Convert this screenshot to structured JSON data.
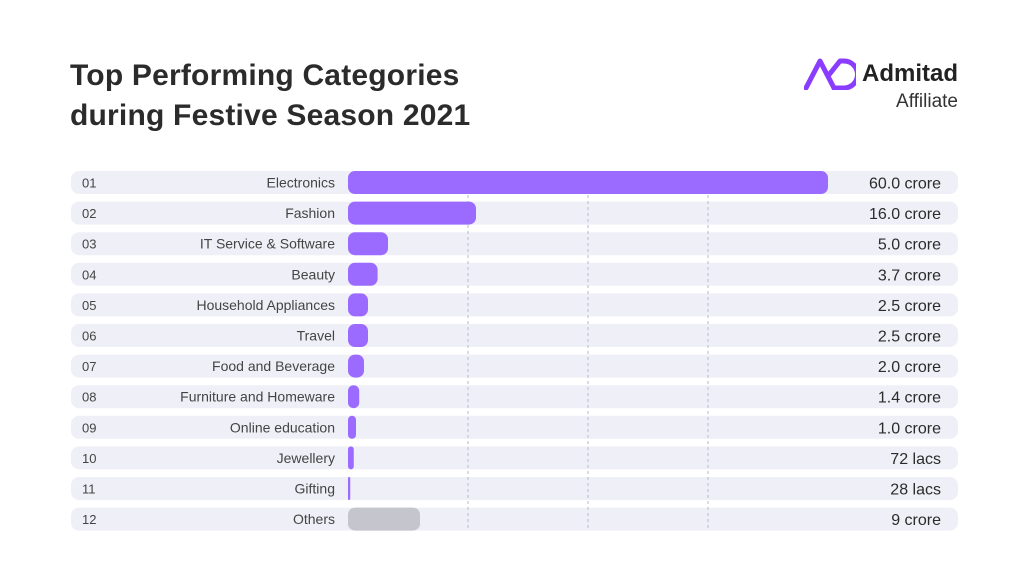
{
  "header": {
    "title_line1": "Top Performing Categories",
    "title_line2": "during Festive Season 2021"
  },
  "brand": {
    "name": "Admitad",
    "subtitle": "Affiliate",
    "logo_color": "#8b3dff"
  },
  "colors": {
    "bar": "#9b6bff",
    "bar_other": "#c5c5cd",
    "row_background": "#efeff8"
  },
  "chart_data": {
    "type": "bar",
    "orientation": "horizontal",
    "title": "Top Performing Categories during Festive Season 2021",
    "xlim": [
      0,
      60
    ],
    "grid": true,
    "ranks": [
      "01",
      "02",
      "03",
      "04",
      "05",
      "06",
      "07",
      "08",
      "09",
      "10",
      "11",
      "12"
    ],
    "categories": [
      "Electronics",
      "Fashion",
      "IT Service & Software",
      "Beauty",
      "Household Appliances",
      "Travel",
      "Food and Beverage",
      "Furniture and Homeware",
      "Online education",
      "Jewellery",
      "Gifting",
      "Others"
    ],
    "values": [
      60.0,
      16.0,
      5.0,
      3.7,
      2.5,
      2.5,
      2.0,
      1.4,
      1.0,
      0.72,
      0.28,
      9
    ],
    "value_labels": [
      "60.0 crore",
      "16.0 crore",
      "5.0 crore",
      "3.7 crore",
      "2.5 crore",
      "2.5 crore",
      "2.0 crore",
      "1.4 crore",
      "1.0 crore",
      "72 lacs",
      "28 lacs",
      "9 crore"
    ],
    "highlight_gray": [
      "Others"
    ]
  }
}
